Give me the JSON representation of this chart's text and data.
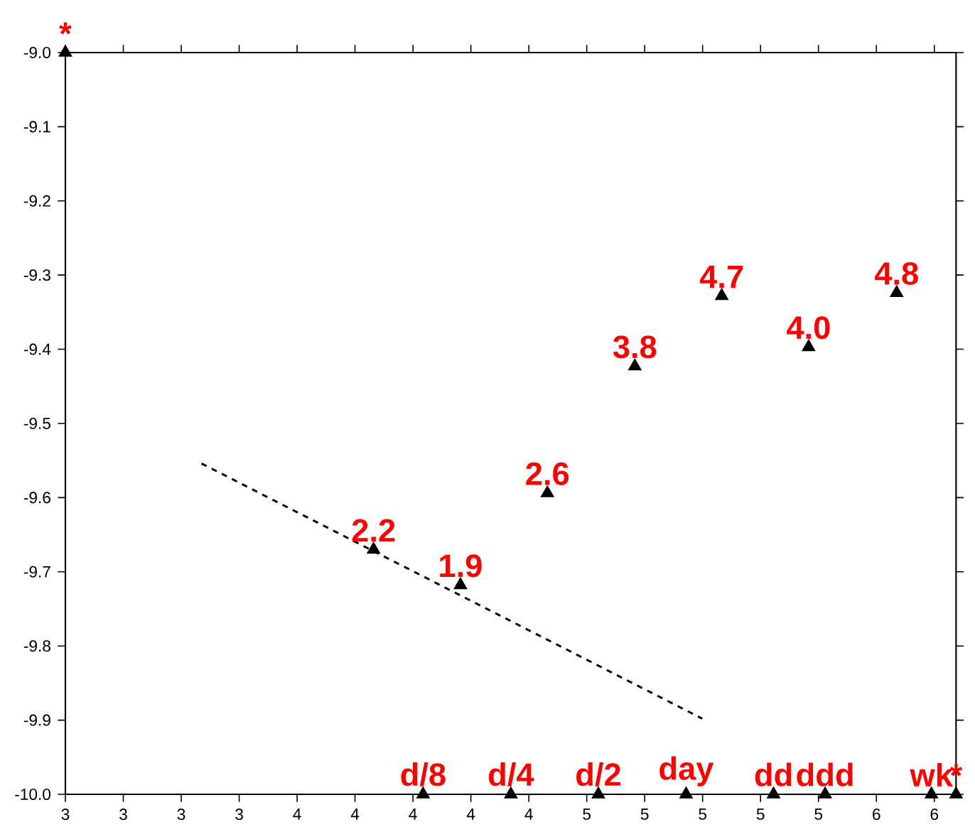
{
  "chart_data": {
    "type": "scatter",
    "xlim": [
      2.75,
      5.825
    ],
    "ylim": [
      -10.0,
      -9.0
    ],
    "xticks": [
      {
        "value": 2.75,
        "label": "3"
      },
      {
        "value": 2.95,
        "label": "3"
      },
      {
        "value": 3.15,
        "label": "3"
      },
      {
        "value": 3.35,
        "label": "3"
      },
      {
        "value": 3.55,
        "label": "4"
      },
      {
        "value": 3.75,
        "label": "4"
      },
      {
        "value": 3.95,
        "label": "4"
      },
      {
        "value": 4.15,
        "label": "4"
      },
      {
        "value": 4.35,
        "label": "4"
      },
      {
        "value": 4.55,
        "label": "5"
      },
      {
        "value": 4.75,
        "label": "5"
      },
      {
        "value": 4.95,
        "label": "5"
      },
      {
        "value": 5.15,
        "label": "5"
      },
      {
        "value": 5.35,
        "label": "5"
      },
      {
        "value": 5.55,
        "label": "6"
      },
      {
        "value": 5.75,
        "label": "6"
      }
    ],
    "yticks": [
      {
        "value": -10.0,
        "label": "-10.0"
      },
      {
        "value": -9.9,
        "label": "-9.9"
      },
      {
        "value": -9.8,
        "label": "-9.8"
      },
      {
        "value": -9.7,
        "label": "-9.7"
      },
      {
        "value": -9.6,
        "label": "-9.6"
      },
      {
        "value": -9.5,
        "label": "-9.5"
      },
      {
        "value": -9.4,
        "label": "-9.4"
      },
      {
        "value": -9.3,
        "label": "-9.3"
      },
      {
        "value": -9.2,
        "label": "-9.2"
      },
      {
        "value": -9.1,
        "label": "-9.1"
      },
      {
        "value": -9.0,
        "label": "-9.0"
      }
    ],
    "grid": false,
    "series": [
      {
        "type": "scatter",
        "color": "#000000",
        "marker": "triangle",
        "x": [
          2.75,
          3.814,
          4.114,
          4.414,
          4.716,
          5.016,
          5.316,
          5.62,
          3.985,
          4.288,
          4.59,
          4.893,
          5.195,
          5.373,
          5.74,
          5.825
        ],
        "values": [
          -9.0,
          -9.67,
          -9.718,
          -9.594,
          -9.423,
          -9.328,
          -9.397,
          -9.324,
          -10.0,
          -10.0,
          -10.0,
          -10.0,
          -10.0,
          -10.0,
          -10.0,
          -10.0
        ]
      },
      {
        "type": "line",
        "color": "#000000",
        "line_style": "dashed",
        "marker": "none",
        "x": [
          3.22,
          4.949
        ],
        "values": [
          -9.554,
          -9.898
        ]
      }
    ],
    "annotations": [
      {
        "text": "*",
        "x": 2.75,
        "y": -9.0
      },
      {
        "text": "2.2",
        "x": 3.814,
        "y": -9.67
      },
      {
        "text": "1.9",
        "x": 4.114,
        "y": -9.718
      },
      {
        "text": "2.6",
        "x": 4.414,
        "y": -9.594
      },
      {
        "text": "3.8",
        "x": 4.716,
        "y": -9.423
      },
      {
        "text": "4.7",
        "x": 5.016,
        "y": -9.328
      },
      {
        "text": "4.0",
        "x": 5.316,
        "y": -9.397
      },
      {
        "text": "4.8",
        "x": 5.62,
        "y": -9.324
      },
      {
        "text": "d/8",
        "x": 3.985,
        "y": -10.0
      },
      {
        "text": "d/4",
        "x": 4.288,
        "y": -10.0
      },
      {
        "text": "d/2",
        "x": 4.59,
        "y": -10.0
      },
      {
        "text": "day",
        "x": 4.893,
        "y": -10.0
      },
      {
        "text": "dd",
        "x": 5.195,
        "y": -10.0
      },
      {
        "text": "ddd",
        "x": 5.373,
        "y": -10.0
      },
      {
        "text": "wk",
        "x": 5.74,
        "y": -10.0
      },
      {
        "text": "*",
        "x": 5.825,
        "y": -10.0
      }
    ]
  }
}
